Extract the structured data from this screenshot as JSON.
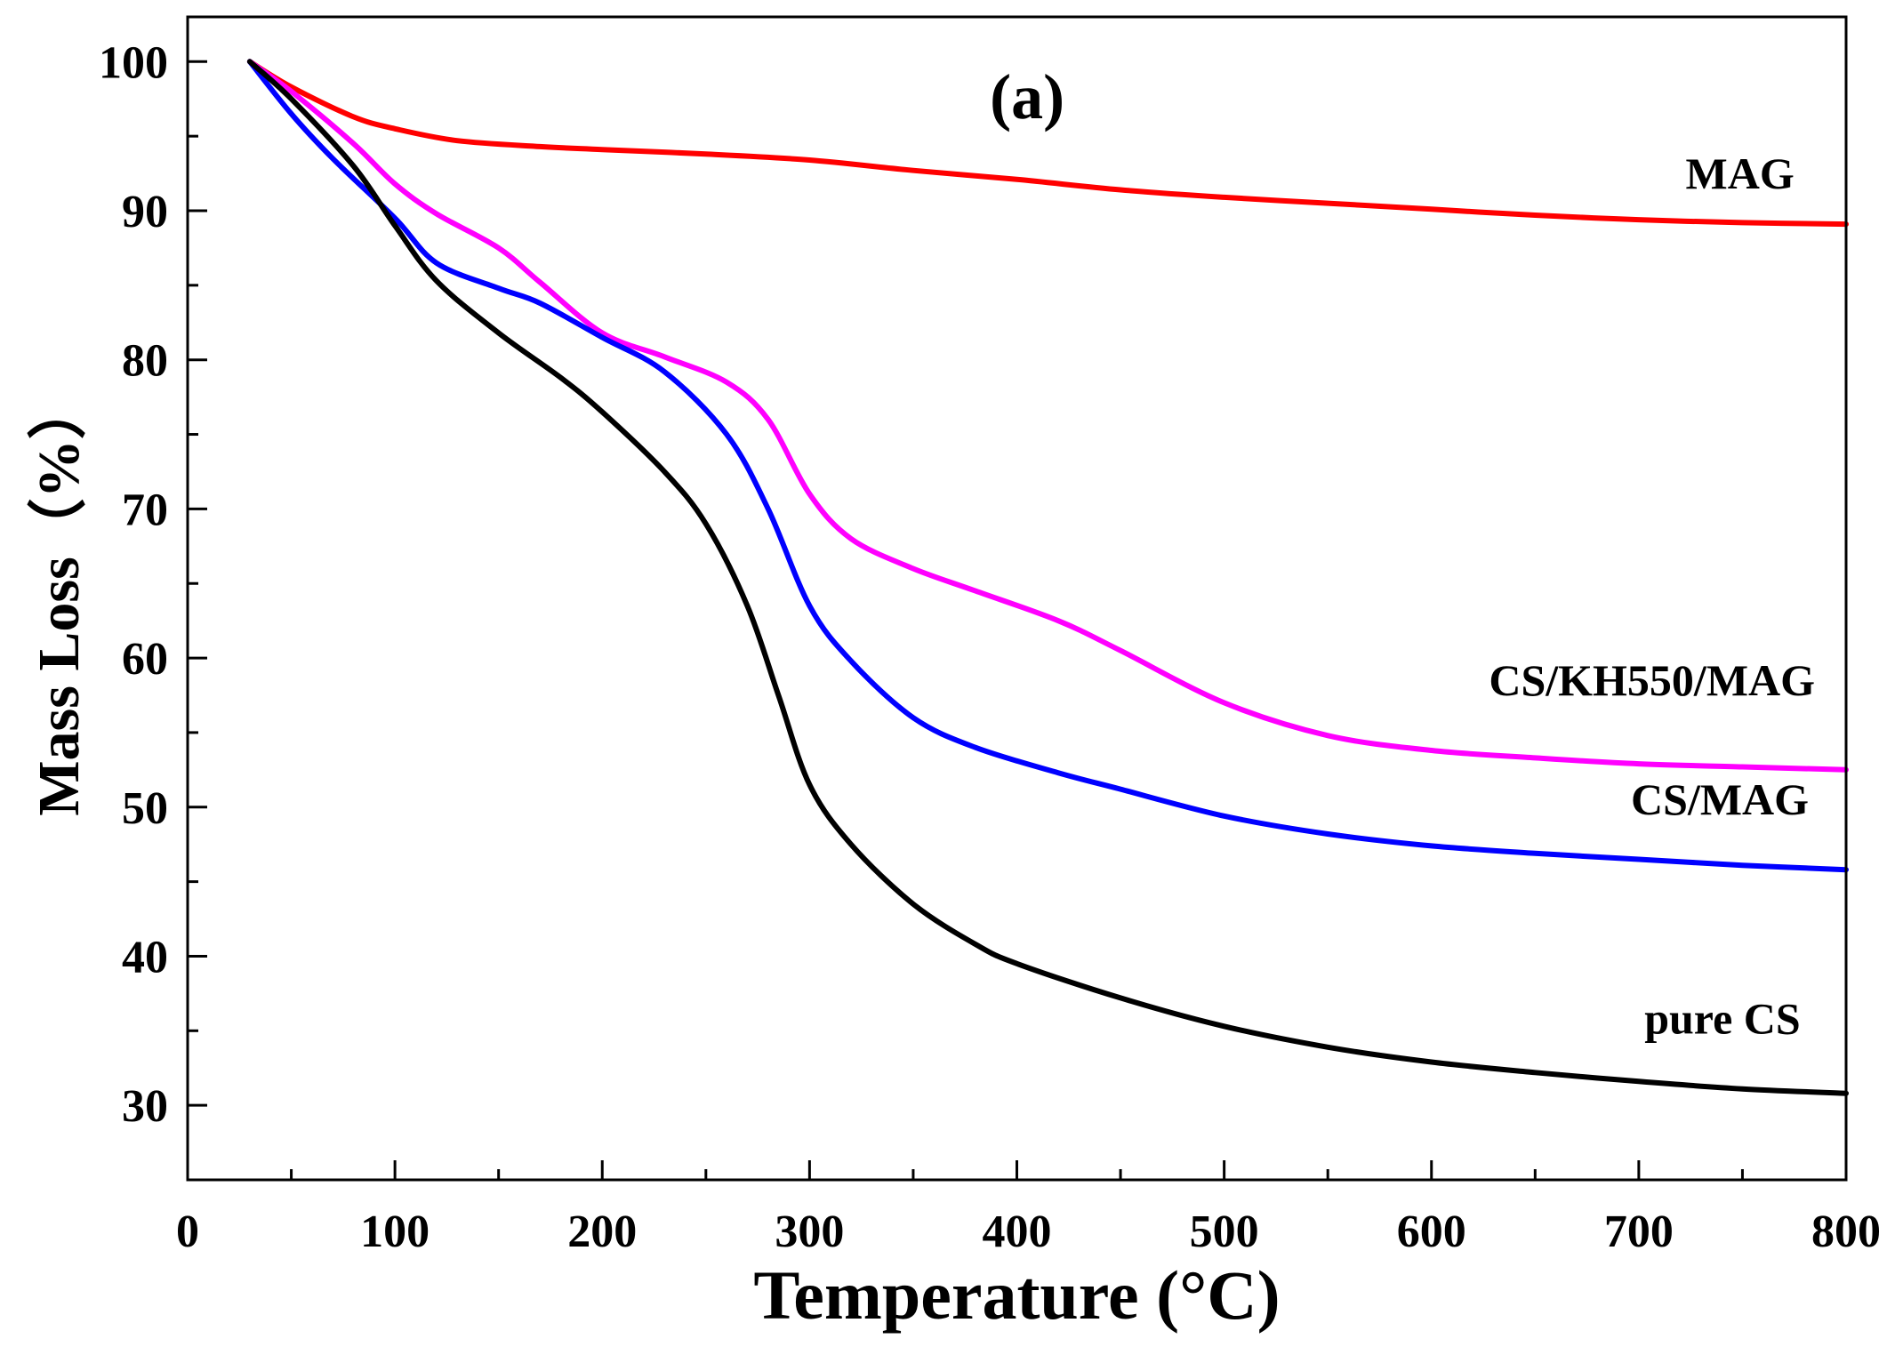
{
  "chart_data": {
    "type": "line",
    "panel_label": "(a)",
    "xlabel": "Temperature (°C)",
    "ylabel": "Mass Loss（%）",
    "xlim": [
      0,
      800
    ],
    "ylim": [
      25,
      103
    ],
    "x_ticks": [
      0,
      100,
      200,
      300,
      400,
      500,
      600,
      700,
      800
    ],
    "x_tick_labels": [
      "0",
      "100",
      "200",
      "300",
      "400",
      "500",
      "600",
      "700",
      "800"
    ],
    "y_ticks": [
      30,
      40,
      50,
      60,
      70,
      80,
      90,
      100
    ],
    "y_tick_labels": [
      "30",
      "40",
      "50",
      "60",
      "70",
      "80",
      "90",
      "100"
    ],
    "grid": false,
    "series": [
      {
        "name": "MAG",
        "color": "#ff0000",
        "label_at": [
          775,
          91.5
        ],
        "x": [
          30,
          50,
          80,
          100,
          130,
          170,
          200,
          250,
          300,
          350,
          400,
          450,
          500,
          550,
          600,
          650,
          700,
          750,
          800
        ],
        "y": [
          100,
          98.3,
          96.3,
          95.5,
          94.7,
          94.3,
          94.1,
          93.8,
          93.4,
          92.7,
          92.1,
          91.4,
          90.9,
          90.5,
          90.1,
          89.7,
          89.4,
          89.2,
          89.1
        ]
      },
      {
        "name": "CS/KH550/MAG",
        "color": "#ff00ff",
        "label_at": [
          785,
          57.5
        ],
        "x": [
          30,
          50,
          80,
          100,
          120,
          150,
          170,
          200,
          230,
          260,
          280,
          300,
          320,
          350,
          380,
          420,
          450,
          500,
          550,
          600,
          650,
          700,
          750,
          800
        ],
        "y": [
          100,
          98,
          94.5,
          91.8,
          89.8,
          87.5,
          85.2,
          81.8,
          80.2,
          78.5,
          76,
          71,
          68,
          66,
          64.5,
          62.5,
          60.5,
          57,
          54.8,
          53.8,
          53.3,
          52.9,
          52.7,
          52.5
        ]
      },
      {
        "name": "CS/MAG",
        "color": "#0000ff",
        "label_at": [
          782,
          49.5
        ],
        "x": [
          30,
          50,
          70,
          100,
          120,
          150,
          170,
          200,
          230,
          260,
          280,
          300,
          320,
          350,
          380,
          420,
          450,
          500,
          550,
          600,
          650,
          700,
          750,
          800
        ],
        "y": [
          100,
          96.5,
          93.5,
          89.5,
          86.5,
          84.8,
          83.8,
          81.5,
          79.2,
          75,
          70,
          63.5,
          59.8,
          56,
          54,
          52.3,
          51.2,
          49.4,
          48.2,
          47.4,
          46.9,
          46.5,
          46.1,
          45.8
        ]
      },
      {
        "name": "pure CS",
        "color": "#000000",
        "label_at": [
          778,
          34.8
        ],
        "x": [
          30,
          50,
          80,
          100,
          120,
          150,
          180,
          200,
          230,
          250,
          270,
          285,
          300,
          320,
          350,
          380,
          400,
          450,
          500,
          550,
          600,
          650,
          700,
          750,
          800
        ],
        "y": [
          100,
          97.5,
          93,
          89,
          85.3,
          81.8,
          78.8,
          76.5,
          72.5,
          69,
          63.5,
          57.5,
          51.5,
          47.5,
          43.5,
          40.8,
          39.5,
          37.2,
          35.3,
          33.9,
          32.9,
          32.2,
          31.6,
          31.1,
          30.8
        ]
      }
    ]
  }
}
